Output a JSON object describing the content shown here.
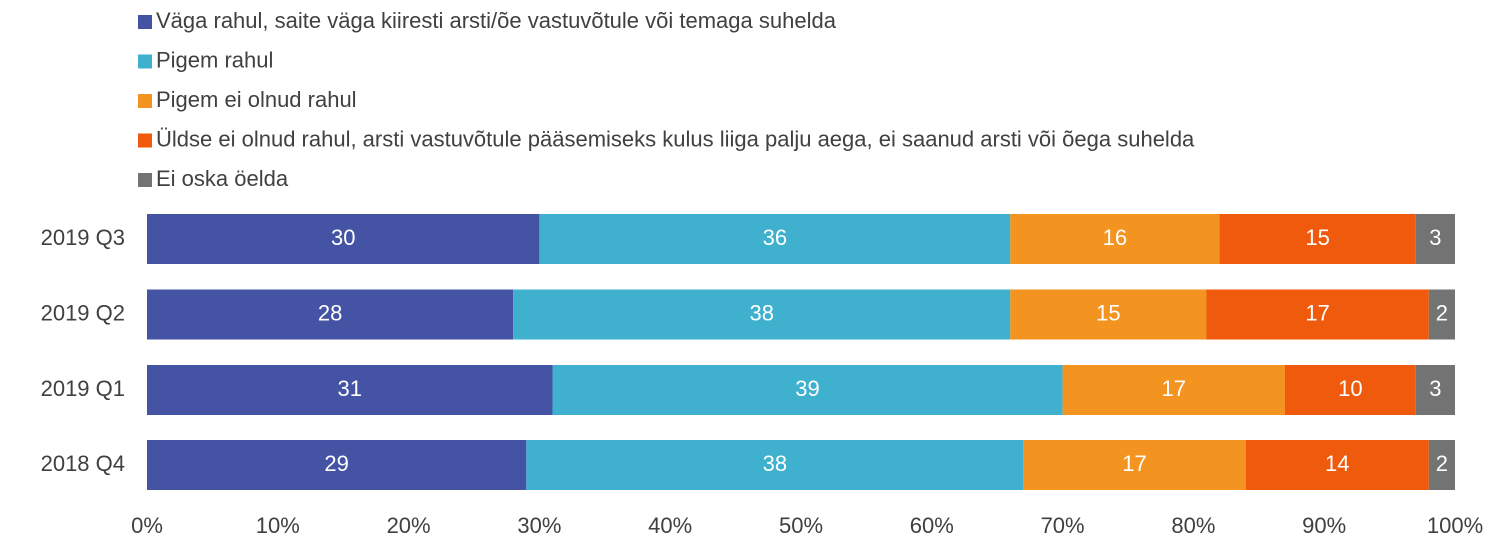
{
  "chart_data": {
    "type": "stacked-bar-horizontal",
    "categories": [
      "2019 Q3",
      "2019 Q2",
      "2019 Q1",
      "2018 Q4"
    ],
    "series": [
      {
        "name": "Väga rahul, saite väga kiiresti arsti/õe vastuvõtule või temaga suhelda",
        "color": "#4553a5",
        "values": [
          30,
          28,
          31,
          29
        ]
      },
      {
        "name": "Pigem rahul",
        "color": "#3fb1cf",
        "values": [
          36,
          38,
          39,
          38
        ]
      },
      {
        "name": "Pigem ei olnud rahul",
        "color": "#f39320",
        "values": [
          16,
          15,
          17,
          17
        ]
      },
      {
        "name": "Üldse ei olnud rahul, arsti vastuvõtule pääsemiseks kulus liiga palju aega, ei saanud arsti või õega suhelda",
        "color": "#ef5a0c",
        "values": [
          15,
          17,
          10,
          14
        ]
      },
      {
        "name": "Ei oska öelda",
        "color": "#737373",
        "values": [
          3,
          2,
          3,
          2
        ]
      }
    ],
    "xlim": [
      0,
      100
    ],
    "xticks": [
      {
        "value": 0,
        "label": "0%"
      },
      {
        "value": 10,
        "label": "10%"
      },
      {
        "value": 20,
        "label": "20%"
      },
      {
        "value": 30,
        "label": "30%"
      },
      {
        "value": 40,
        "label": "40%"
      },
      {
        "value": 50,
        "label": "50%"
      },
      {
        "value": 60,
        "label": "60%"
      },
      {
        "value": 70,
        "label": "70%"
      },
      {
        "value": 80,
        "label": "80%"
      },
      {
        "value": 90,
        "label": "90%"
      },
      {
        "value": 100,
        "label": "100%"
      }
    ],
    "legend": "top",
    "grid": false
  }
}
